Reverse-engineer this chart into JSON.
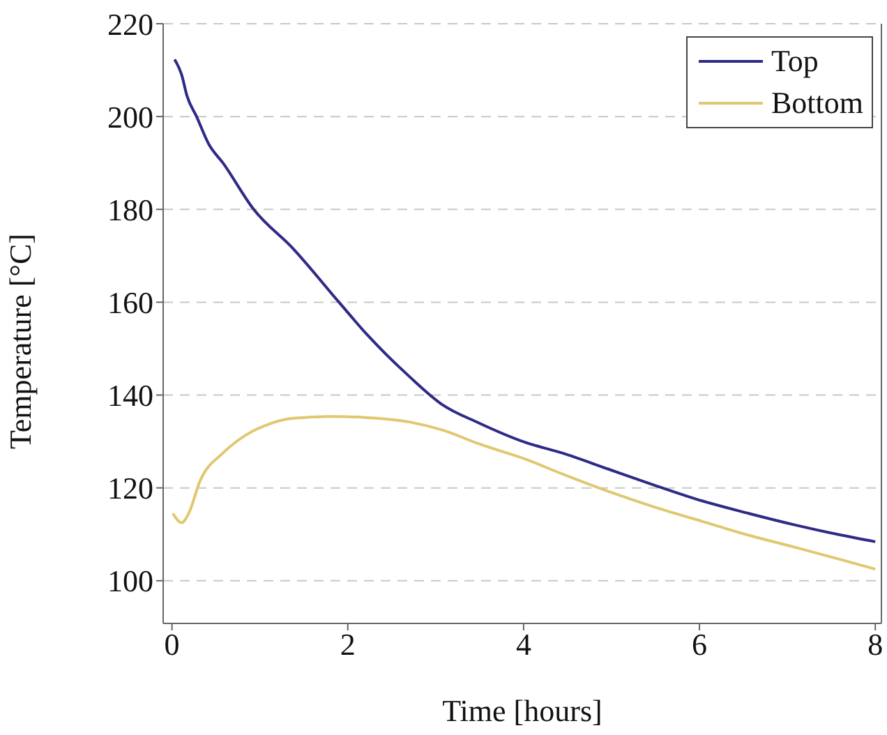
{
  "chart_data": {
    "type": "line",
    "xlabel": "Time [hours]",
    "ylabel": "Temperature [°C]",
    "xlim": [
      -0.1,
      8.07
    ],
    "ylim": [
      90.8,
      220
    ],
    "xticks": [
      0,
      2,
      4,
      6,
      8
    ],
    "yticks": [
      100,
      120,
      140,
      160,
      180,
      200,
      220
    ],
    "grid": "y",
    "legend": "top right",
    "marker": "none",
    "line_style": "solid",
    "series": [
      {
        "name": "Top",
        "color": "#2f2a86",
        "x": [
          0.03,
          0.11,
          0.17,
          0.28,
          0.42,
          0.58,
          0.93,
          1.38,
          1.9,
          2.22,
          2.7,
          3.07,
          3.49,
          4.02,
          4.44,
          4.97,
          5.5,
          6.03,
          6.56,
          7.09,
          7.62,
          8.0
        ],
        "values": [
          212.3,
          209,
          204.5,
          200,
          194,
          190,
          180,
          171.5,
          160,
          153,
          144,
          138,
          134,
          129.8,
          127.5,
          124,
          120.5,
          117.2,
          114.5,
          112,
          109.8,
          108.4
        ]
      },
      {
        "name": "Bottom",
        "color": "#e0c870",
        "x": [
          0.01,
          0.11,
          0.19,
          0.32,
          0.58,
          0.85,
          1.11,
          1.38,
          1.8,
          2.17,
          2.7,
          3.07,
          3.49,
          4.02,
          4.44,
          4.97,
          5.5,
          6.03,
          6.56,
          7.09,
          7.62,
          8.0
        ],
        "values": [
          114.5,
          112.5,
          114.5,
          121.5,
          127.5,
          131.5,
          133.8,
          135,
          135.4,
          135.2,
          134.2,
          132.5,
          129.5,
          126.2,
          123,
          119.2,
          115.8,
          112.8,
          109.8,
          107.2,
          104.5,
          102.5
        ]
      }
    ]
  }
}
